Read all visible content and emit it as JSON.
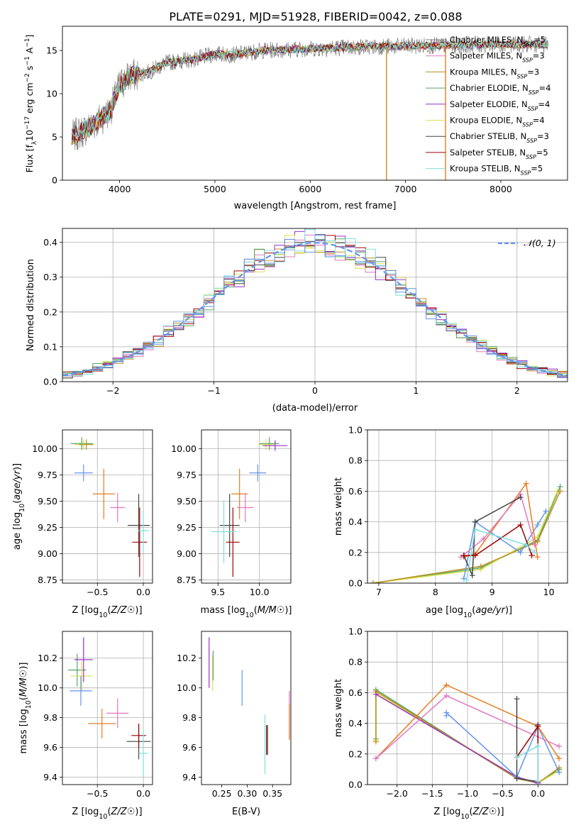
{
  "figure_title": "PLATE=0291, MJD=51928, FIBERID=0042, z=0.088",
  "colors": [
    "#808080",
    "#e377c2",
    "#bc8f1f",
    "#55a868",
    "#9b30c8",
    "#d9e04e",
    "#444444",
    "#a00000",
    "#7fdfdf",
    "#6495ed",
    "#e67e22"
  ],
  "chart_data": [
    {
      "id": "spectrum",
      "type": "line",
      "title": "PLATE=0291, MJD=51928, FIBERID=0042, z=0.088",
      "xlabel": "wavelength [Angstrom, rest frame]",
      "ylabel": "Flux [f_λ10^-17 erg cm^-2 s^-1 A^-1]",
      "xlim": [
        3400,
        8700
      ],
      "ylim": [
        0,
        17.8
      ],
      "xticks": [
        4000,
        5000,
        6000,
        7000,
        8000
      ],
      "yticks": [
        0,
        5,
        10,
        15
      ],
      "grid": false,
      "legend_position": "upper-right",
      "data_envelope": {
        "x": [
          3500,
          3700,
          3900,
          4000,
          4100,
          4300,
          4500,
          4800,
          5000,
          5200,
          5500,
          6000,
          6500,
          7000,
          7500,
          8000,
          8500
        ],
        "y": [
          5.0,
          6.2,
          8.0,
          11.0,
          12.0,
          12.5,
          13.6,
          14.0,
          14.6,
          14.5,
          15.0,
          15.2,
          15.4,
          15.5,
          15.6,
          15.7,
          15.7
        ]
      },
      "series": [
        {
          "name": "Chabrier MILES, N_SSP=5",
          "color": "#808080"
        },
        {
          "name": "Salpeter MILES, N_SSP=3",
          "color": "#e377c2"
        },
        {
          "name": "Kroupa MILES, N_SSP=3",
          "color": "#bc8f1f"
        },
        {
          "name": "Chabrier ELODIE, N_SSP=4",
          "color": "#55a868"
        },
        {
          "name": "Salpeter ELODIE, N_SSP=4",
          "color": "#9b30c8"
        },
        {
          "name": "Kroupa ELODIE, N_SSP=4",
          "color": "#d9e04e"
        },
        {
          "name": "Chabrier STELIB, N_SSP=3",
          "color": "#444444"
        },
        {
          "name": "Salpeter STELIB, N_SSP=5",
          "color": "#a00000"
        },
        {
          "name": "Kroupa STELIB, N_SSP=5",
          "color": "#7fdfdf"
        }
      ],
      "vertical_features": [
        {
          "x": 7420,
          "color": "#e67e22"
        },
        {
          "x": 6800,
          "color": "#bc8f1f"
        }
      ]
    },
    {
      "id": "residuals",
      "type": "line",
      "xlabel": "(data-model)/error",
      "ylabel": "Normed distribution",
      "xlim": [
        -2.5,
        2.5
      ],
      "ylim": [
        0,
        0.44
      ],
      "xticks": [
        -2,
        -1,
        0,
        1,
        2
      ],
      "yticks": [
        0.0,
        0.1,
        0.2,
        0.3,
        0.4
      ],
      "grid": true,
      "legend": [
        {
          "name": "𝒩(0, 1)",
          "style": "dashed",
          "color": "#6495ed"
        }
      ],
      "legend_position": "upper-right",
      "model": {
        "name": "𝒩(0, 1)",
        "mean": 0,
        "sigma": 1
      },
      "histogram_bin_width": 0.1,
      "histogram_series_count": 9
    },
    {
      "id": "age_vs_Z",
      "type": "scatter",
      "xlabel": "Z [log10(Z/Z☉)]",
      "ylabel": "age  [log10(age/yr)]",
      "xlim": [
        -0.88,
        0.1
      ],
      "ylim": [
        8.72,
        10.18
      ],
      "xticks": [
        -0.5,
        0.0
      ],
      "yticks": [
        8.75,
        9.0,
        9.25,
        9.5,
        9.75,
        10.0
      ],
      "grid": true,
      "points": [
        {
          "x": -0.67,
          "y": 10.05,
          "xerr": 0.12,
          "yerr": 0.06,
          "color": "#55a868"
        },
        {
          "x": -0.65,
          "y": 10.04,
          "xerr": 0.1,
          "yerr": 0.05,
          "color": "#d9e04e"
        },
        {
          "x": -0.62,
          "y": 10.04,
          "xerr": 0.08,
          "yerr": 0.05,
          "color": "#bc8f1f"
        },
        {
          "x": -0.65,
          "y": 9.77,
          "xerr": 0.1,
          "yerr": 0.08,
          "color": "#6495ed"
        },
        {
          "x": -0.43,
          "y": 9.57,
          "xerr": 0.12,
          "yerr": 0.24,
          "color": "#e67e22"
        },
        {
          "x": -0.28,
          "y": 9.44,
          "xerr": 0.08,
          "yerr": 0.14,
          "color": "#e377c2"
        },
        {
          "x": -0.05,
          "y": 9.27,
          "xerr": 0.12,
          "yerr": 0.3,
          "color": "#444444"
        },
        {
          "x": -0.04,
          "y": 9.11,
          "xerr": 0.08,
          "yerr": 0.33,
          "color": "#a00000"
        },
        {
          "x": 0.0,
          "y": 9.22,
          "xerr": 0.06,
          "yerr": 0.2,
          "color": "#7fdfdf"
        }
      ]
    },
    {
      "id": "age_vs_mass",
      "type": "scatter",
      "xlabel": "mass [log10(M/M☉)]",
      "ylabel": "",
      "xlim": [
        9.3,
        10.38
      ],
      "ylim": [
        8.72,
        10.18
      ],
      "xticks": [
        9.5,
        10.0
      ],
      "yticks": [
        8.75,
        9.0,
        9.25,
        9.5,
        9.75,
        10.0
      ],
      "grid": true,
      "points": [
        {
          "x": 10.12,
          "y": 10.05,
          "xerr": 0.12,
          "yerr": 0.06,
          "color": "#55a868"
        },
        {
          "x": 10.08,
          "y": 10.04,
          "xerr": 0.1,
          "yerr": 0.05,
          "color": "#d9e04e"
        },
        {
          "x": 10.19,
          "y": 10.03,
          "xerr": 0.15,
          "yerr": 0.05,
          "color": "#9b30c8"
        },
        {
          "x": 9.98,
          "y": 9.77,
          "xerr": 0.1,
          "yerr": 0.08,
          "color": "#6495ed"
        },
        {
          "x": 9.76,
          "y": 9.57,
          "xerr": 0.1,
          "yerr": 0.24,
          "color": "#e67e22"
        },
        {
          "x": 9.83,
          "y": 9.44,
          "xerr": 0.1,
          "yerr": 0.14,
          "color": "#e377c2"
        },
        {
          "x": 9.64,
          "y": 9.27,
          "xerr": 0.12,
          "yerr": 0.3,
          "color": "#444444"
        },
        {
          "x": 9.68,
          "y": 9.11,
          "xerr": 0.08,
          "yerr": 0.33,
          "color": "#a00000"
        },
        {
          "x": 9.57,
          "y": 9.21,
          "xerr": 0.15,
          "yerr": 0.3,
          "color": "#7fdfdf"
        }
      ]
    },
    {
      "id": "massweight_vs_age",
      "type": "line",
      "xlabel": "age  [log10(age/yr)]",
      "ylabel": "mass weight",
      "xlim": [
        6.8,
        10.33
      ],
      "ylim": [
        0,
        1.0
      ],
      "xticks": [
        7,
        8,
        9,
        10
      ],
      "yticks": [
        0.0,
        0.2,
        0.4,
        0.6,
        0.8,
        1.0
      ],
      "grid": true,
      "series": [
        {
          "color": "#55a868",
          "x": [
            6.9,
            8.8,
            9.8,
            10.2
          ],
          "y": [
            0.0,
            0.1,
            0.28,
            0.63
          ]
        },
        {
          "color": "#d9e04e",
          "x": [
            6.9,
            8.8,
            9.8,
            10.15
          ],
          "y": [
            0.0,
            0.09,
            0.3,
            0.6
          ]
        },
        {
          "color": "#bc8f1f",
          "x": [
            6.9,
            8.8,
            9.8,
            10.2
          ],
          "y": [
            0.0,
            0.11,
            0.27,
            0.6
          ]
        },
        {
          "color": "#6495ed",
          "x": [
            8.5,
            8.7,
            9.5,
            9.8,
            9.95
          ],
          "y": [
            0.03,
            0.4,
            0.2,
            0.38,
            0.47
          ]
        },
        {
          "color": "#e67e22",
          "x": [
            8.5,
            8.7,
            9.6,
            9.8
          ],
          "y": [
            0.17,
            0.19,
            0.65,
            0.17
          ]
        },
        {
          "color": "#e377c2",
          "x": [
            8.45,
            8.85,
            9.5,
            9.75
          ],
          "y": [
            0.17,
            0.29,
            0.58,
            0.25
          ]
        },
        {
          "color": "#444444",
          "x": [
            8.5,
            8.65,
            8.7,
            9.5
          ],
          "y": [
            0.18,
            0.05,
            0.4,
            0.56
          ]
        },
        {
          "color": "#a00000",
          "x": [
            8.5,
            8.7,
            9.5,
            9.7
          ],
          "y": [
            0.18,
            0.18,
            0.38,
            0.18
          ]
        },
        {
          "color": "#7fdfdf",
          "x": [
            8.55,
            8.7,
            9.6,
            9.75
          ],
          "y": [
            0.02,
            0.35,
            0.25,
            0.2
          ]
        }
      ]
    },
    {
      "id": "mass_vs_Z",
      "type": "scatter",
      "xlabel": "Z [log10(Z/Z☉)]",
      "ylabel": "mass [log10(M/M☉)]",
      "xlim": [
        -0.88,
        0.1
      ],
      "ylim": [
        9.35,
        10.38
      ],
      "xticks": [
        -0.5,
        0.0
      ],
      "yticks": [
        9.4,
        9.6,
        9.8,
        10.0,
        10.2
      ],
      "grid": true,
      "points": [
        {
          "x": -0.72,
          "y": 10.12,
          "xerr": 0.1,
          "yerr": 0.11,
          "color": "#55a868"
        },
        {
          "x": -0.67,
          "y": 10.08,
          "xerr": 0.12,
          "yerr": 0.1,
          "color": "#d9e04e"
        },
        {
          "x": -0.65,
          "y": 10.19,
          "xerr": 0.1,
          "yerr": 0.15,
          "color": "#9b30c8"
        },
        {
          "x": -0.68,
          "y": 9.98,
          "xerr": 0.12,
          "yerr": 0.1,
          "color": "#6495ed"
        },
        {
          "x": -0.45,
          "y": 9.76,
          "xerr": 0.15,
          "yerr": 0.1,
          "color": "#e67e22"
        },
        {
          "x": -0.28,
          "y": 9.83,
          "xerr": 0.12,
          "yerr": 0.1,
          "color": "#e377c2"
        },
        {
          "x": -0.05,
          "y": 9.64,
          "xerr": 0.13,
          "yerr": 0.12,
          "color": "#444444"
        },
        {
          "x": -0.05,
          "y": 9.68,
          "xerr": 0.08,
          "yerr": 0.08,
          "color": "#a00000"
        },
        {
          "x": 0.0,
          "y": 9.56,
          "xerr": 0.05,
          "yerr": 0.16,
          "color": "#7fdfdf"
        }
      ]
    },
    {
      "id": "mass_vs_EBV",
      "type": "scatter",
      "xlabel": "E(B-V)",
      "ylabel": "",
      "xlim": [
        0.21,
        0.386
      ],
      "ylim": [
        9.35,
        10.38
      ],
      "xticks": [
        0.25,
        0.3,
        0.35
      ],
      "yticks": [
        9.4,
        9.6,
        9.8,
        10.0,
        10.2
      ],
      "grid": false,
      "points": [
        {
          "x": 0.225,
          "y": 10.17,
          "xerr": 0.0,
          "yerr": 0.17,
          "color": "#9b30c8"
        },
        {
          "x": 0.232,
          "y": 10.1,
          "xerr": 0.0,
          "yerr": 0.12,
          "color": "#d9e04e"
        },
        {
          "x": 0.233,
          "y": 10.15,
          "xerr": 0.0,
          "yerr": 0.1,
          "color": "#55a868"
        },
        {
          "x": 0.29,
          "y": 10.0,
          "xerr": 0.0,
          "yerr": 0.12,
          "color": "#6495ed"
        },
        {
          "x": 0.335,
          "y": 9.62,
          "xerr": 0.0,
          "yerr": 0.2,
          "color": "#7fdfdf"
        },
        {
          "x": 0.338,
          "y": 9.65,
          "xerr": 0.0,
          "yerr": 0.1,
          "color": "#444444"
        },
        {
          "x": 0.34,
          "y": 9.65,
          "xerr": 0.0,
          "yerr": 0.1,
          "color": "#a00000"
        },
        {
          "x": 0.383,
          "y": 9.82,
          "xerr": 0.0,
          "yerr": 0.16,
          "color": "#e377c2"
        },
        {
          "x": 0.383,
          "y": 9.77,
          "xerr": 0.0,
          "yerr": 0.12,
          "color": "#e67e22"
        }
      ]
    },
    {
      "id": "massweight_vs_Z",
      "type": "line",
      "xlabel": "Z [log10(Z/Z☉)]",
      "ylabel": "mass weight",
      "xlim": [
        -2.42,
        0.42
      ],
      "ylim": [
        0,
        1.0
      ],
      "xticks": [
        -2.0,
        -1.5,
        -1.0,
        -0.5,
        0.0
      ],
      "yticks": [
        0.0,
        0.2,
        0.4,
        0.6,
        0.8,
        1.0
      ],
      "grid": true,
      "series": [
        {
          "color": "#55a868",
          "x": [
            -2.3,
            -2.3,
            -0.3,
            0.0,
            0.3
          ],
          "y": [
            0.3,
            0.62,
            0.04,
            0.01,
            0.1
          ]
        },
        {
          "color": "#d9e04e",
          "x": [
            -2.3,
            -2.3,
            -0.3,
            0.0,
            0.3
          ],
          "y": [
            0.29,
            0.6,
            0.05,
            0.01,
            0.09
          ]
        },
        {
          "color": "#bc8f1f",
          "x": [
            -2.3,
            -2.3,
            -0.3,
            0.0,
            0.3
          ],
          "y": [
            0.28,
            0.61,
            0.04,
            0.01,
            0.11
          ]
        },
        {
          "color": "#9b30c8",
          "x": [
            -2.3,
            -0.3,
            0.0
          ],
          "y": [
            0.59,
            0.05,
            0.01
          ]
        },
        {
          "color": "#6495ed",
          "x": [
            -1.3,
            -1.3,
            -0.3,
            0.0,
            0.3
          ],
          "y": [
            0.45,
            0.47,
            0.05,
            0.38,
            0.08
          ]
        },
        {
          "color": "#e67e22",
          "x": [
            -2.3,
            -1.3,
            0.0,
            0.3
          ],
          "y": [
            0.17,
            0.65,
            0.38,
            0.17
          ]
        },
        {
          "color": "#e377c2",
          "x": [
            -2.3,
            -1.3,
            0.3
          ],
          "y": [
            0.17,
            0.58,
            0.25
          ]
        },
        {
          "color": "#444444",
          "x": [
            -0.3,
            -0.3,
            0.0,
            0.0
          ],
          "y": [
            0.56,
            0.04,
            0.02,
            0.39
          ]
        },
        {
          "color": "#a00000",
          "x": [
            -0.3,
            0.0,
            0.0
          ],
          "y": [
            0.18,
            0.38,
            0.02
          ]
        },
        {
          "color": "#7fdfdf",
          "x": [
            -0.3,
            0.0,
            0.0
          ],
          "y": [
            0.18,
            0.25,
            0.02
          ]
        }
      ]
    }
  ]
}
